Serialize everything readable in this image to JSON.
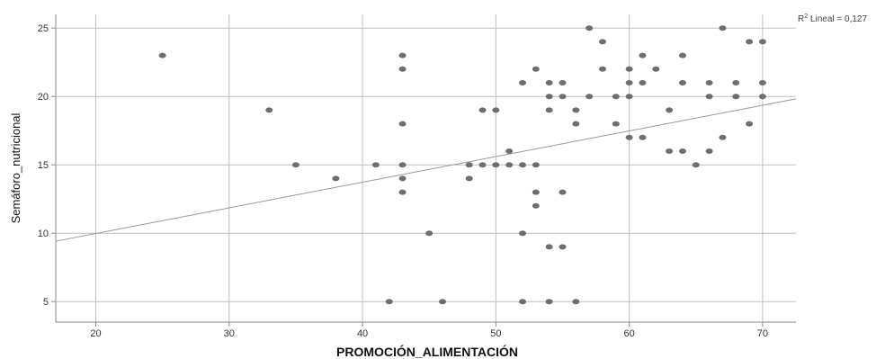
{
  "chart_data": {
    "type": "scatter",
    "xlabel": "PROMOCIÓN_ALIMENTACIÓN",
    "ylabel": "Semáforo_nutricional",
    "xlim": [
      17,
      72.5
    ],
    "ylim": [
      3.5,
      26
    ],
    "xticks": [
      20,
      30,
      40,
      50,
      60,
      70
    ],
    "yticks": [
      5,
      10,
      15,
      20,
      25
    ],
    "grid": true,
    "r2_prefix": "R",
    "r2_sup": "2",
    "r2_text": " Lineal = 0,127",
    "fit_line": {
      "intercept": 6.23,
      "slope": 0.1875
    },
    "colors": {
      "point": "#6e6e6e",
      "grid": "#bfbfbf",
      "axis": "#888888",
      "fit": "#999999"
    },
    "points": [
      [
        25,
        23
      ],
      [
        33,
        19
      ],
      [
        35,
        15
      ],
      [
        38,
        14
      ],
      [
        41,
        15
      ],
      [
        42,
        5
      ],
      [
        43,
        23
      ],
      [
        43,
        22
      ],
      [
        43,
        18
      ],
      [
        43,
        15
      ],
      [
        43,
        14
      ],
      [
        43,
        13
      ],
      [
        45,
        10
      ],
      [
        46,
        5
      ],
      [
        48,
        15
      ],
      [
        48,
        14
      ],
      [
        49,
        19
      ],
      [
        49,
        15
      ],
      [
        50,
        19
      ],
      [
        50,
        15
      ],
      [
        51,
        16
      ],
      [
        51,
        15
      ],
      [
        52,
        21
      ],
      [
        52,
        15
      ],
      [
        52,
        10
      ],
      [
        52,
        5
      ],
      [
        53,
        22
      ],
      [
        53,
        15
      ],
      [
        53,
        13
      ],
      [
        53,
        12
      ],
      [
        54,
        21
      ],
      [
        54,
        20
      ],
      [
        54,
        19
      ],
      [
        54,
        9
      ],
      [
        54,
        5
      ],
      [
        55,
        21
      ],
      [
        55,
        20
      ],
      [
        55,
        13
      ],
      [
        55,
        9
      ],
      [
        56,
        19
      ],
      [
        56,
        18
      ],
      [
        56,
        5
      ],
      [
        57,
        25
      ],
      [
        57,
        20
      ],
      [
        58,
        24
      ],
      [
        58,
        22
      ],
      [
        59,
        20
      ],
      [
        59,
        18
      ],
      [
        60,
        22
      ],
      [
        60,
        21
      ],
      [
        60,
        20
      ],
      [
        60,
        17
      ],
      [
        61,
        23
      ],
      [
        61,
        21
      ],
      [
        61,
        17
      ],
      [
        62,
        22
      ],
      [
        63,
        19
      ],
      [
        63,
        16
      ],
      [
        64,
        23
      ],
      [
        64,
        21
      ],
      [
        64,
        16
      ],
      [
        65,
        15
      ],
      [
        66,
        21
      ],
      [
        66,
        20
      ],
      [
        66,
        16
      ],
      [
        67,
        25
      ],
      [
        67,
        17
      ],
      [
        68,
        21
      ],
      [
        68,
        20
      ],
      [
        69,
        24
      ],
      [
        69,
        18
      ],
      [
        70,
        24
      ],
      [
        70,
        21
      ],
      [
        70,
        20
      ]
    ]
  }
}
